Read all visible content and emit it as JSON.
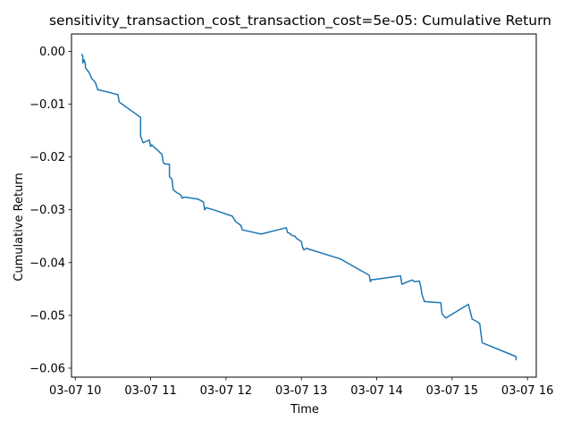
{
  "chart_data": {
    "type": "line",
    "title": "sensitivity_transaction_cost_transaction_cost=5e-05: Cumulative Return",
    "xlabel": "Time",
    "ylabel": "Cumulative Return",
    "x_is_time": true,
    "xlim": [
      "03-07 09:57",
      "03-07 16:07"
    ],
    "ylim": [
      -0.0617,
      0.0033
    ],
    "grid": false,
    "legend": "none",
    "line_color": "#1f77b4",
    "xticks": [
      {
        "value": "03-07 10:00",
        "label": "03-07 10"
      },
      {
        "value": "03-07 11:00",
        "label": "03-07 11"
      },
      {
        "value": "03-07 12:00",
        "label": "03-07 12"
      },
      {
        "value": "03-07 13:00",
        "label": "03-07 13"
      },
      {
        "value": "03-07 14:00",
        "label": "03-07 14"
      },
      {
        "value": "03-07 15:00",
        "label": "03-07 15"
      },
      {
        "value": "03-07 16:00",
        "label": "03-07 16"
      }
    ],
    "yticks": [
      {
        "value": 0.0,
        "label": "0.00"
      },
      {
        "value": -0.01,
        "label": "−0.01"
      },
      {
        "value": -0.02,
        "label": "−0.02"
      },
      {
        "value": -0.03,
        "label": "−0.03"
      },
      {
        "value": -0.04,
        "label": "−0.04"
      },
      {
        "value": -0.05,
        "label": "−0.05"
      },
      {
        "value": -0.06,
        "label": "−0.06"
      }
    ],
    "series": [
      {
        "x": [
          "03-07 10:05",
          "03-07 10:06",
          "03-07 10:06",
          "03-07 10:07",
          "03-07 10:08",
          "03-07 10:08",
          "03-07 10:09",
          "03-07 10:11",
          "03-07 10:13",
          "03-07 10:15",
          "03-07 10:16",
          "03-07 10:18",
          "03-07 10:19",
          "03-07 10:19",
          "03-07 10:34",
          "03-07 10:35",
          "03-07 10:52",
          "03-07 10:52",
          "03-07 10:54",
          "03-07 10:59",
          "03-07 11:00",
          "03-07 11:01",
          "03-07 11:03",
          "03-07 11:05",
          "03-07 11:09",
          "03-07 11:10",
          "03-07 11:11",
          "03-07 11:15",
          "03-07 11:15",
          "03-07 11:17",
          "03-07 11:18",
          "03-07 11:20",
          "03-07 11:24",
          "03-07 11:25",
          "03-07 11:27",
          "03-07 11:38",
          "03-07 11:42",
          "03-07 11:43",
          "03-07 11:44",
          "03-07 11:50",
          "03-07 12:05",
          "03-07 12:07",
          "03-07 12:08",
          "03-07 12:12",
          "03-07 12:13",
          "03-07 12:28",
          "03-07 12:48",
          "03-07 12:49",
          "03-07 12:51",
          "03-07 12:52",
          "03-07 12:55",
          "03-07 12:56",
          "03-07 13:00",
          "03-07 13:01",
          "03-07 13:02",
          "03-07 13:04",
          "03-07 13:31",
          "03-07 13:54",
          "03-07 13:55",
          "03-07 13:56",
          "03-07 13:58",
          "03-07 14:19",
          "03-07 14:20",
          "03-07 14:28",
          "03-07 14:30",
          "03-07 14:34",
          "03-07 14:35",
          "03-07 14:36",
          "03-07 14:37",
          "03-07 14:38",
          "03-07 14:39",
          "03-07 14:51",
          "03-07 14:52",
          "03-07 14:53",
          "03-07 14:55",
          "03-07 15:13",
          "03-07 15:15",
          "03-07 15:16",
          "03-07 15:20",
          "03-07 15:22",
          "03-07 15:23",
          "03-07 15:24",
          "03-07 15:51",
          "03-07 15:51"
        ],
        "values": [
          -0.0005,
          -0.0009,
          -0.0022,
          -0.0016,
          -0.0024,
          -0.0031,
          -0.0034,
          -0.004,
          -0.0051,
          -0.0056,
          -0.0059,
          -0.0073,
          -0.0073,
          -0.0073,
          -0.0082,
          -0.0096,
          -0.0125,
          -0.016,
          -0.0173,
          -0.0168,
          -0.018,
          -0.0177,
          -0.0182,
          -0.0186,
          -0.0195,
          -0.021,
          -0.0213,
          -0.0214,
          -0.0237,
          -0.0242,
          -0.0262,
          -0.0266,
          -0.0272,
          -0.0278,
          -0.0276,
          -0.028,
          -0.0285,
          -0.03,
          -0.0296,
          -0.03,
          -0.0312,
          -0.032,
          -0.0323,
          -0.033,
          -0.0338,
          -0.0346,
          -0.0334,
          -0.0343,
          -0.0345,
          -0.0348,
          -0.035,
          -0.0354,
          -0.036,
          -0.0371,
          -0.0376,
          -0.0373,
          -0.0393,
          -0.0424,
          -0.0436,
          -0.0432,
          -0.0432,
          -0.0425,
          -0.0441,
          -0.0433,
          -0.0436,
          -0.0435,
          -0.0445,
          -0.046,
          -0.0467,
          -0.0474,
          -0.0474,
          -0.0476,
          -0.0497,
          -0.05,
          -0.0505,
          -0.0479,
          -0.0498,
          -0.0507,
          -0.0512,
          -0.0516,
          -0.0535,
          -0.0552,
          -0.0578,
          -0.0585
        ]
      }
    ]
  }
}
